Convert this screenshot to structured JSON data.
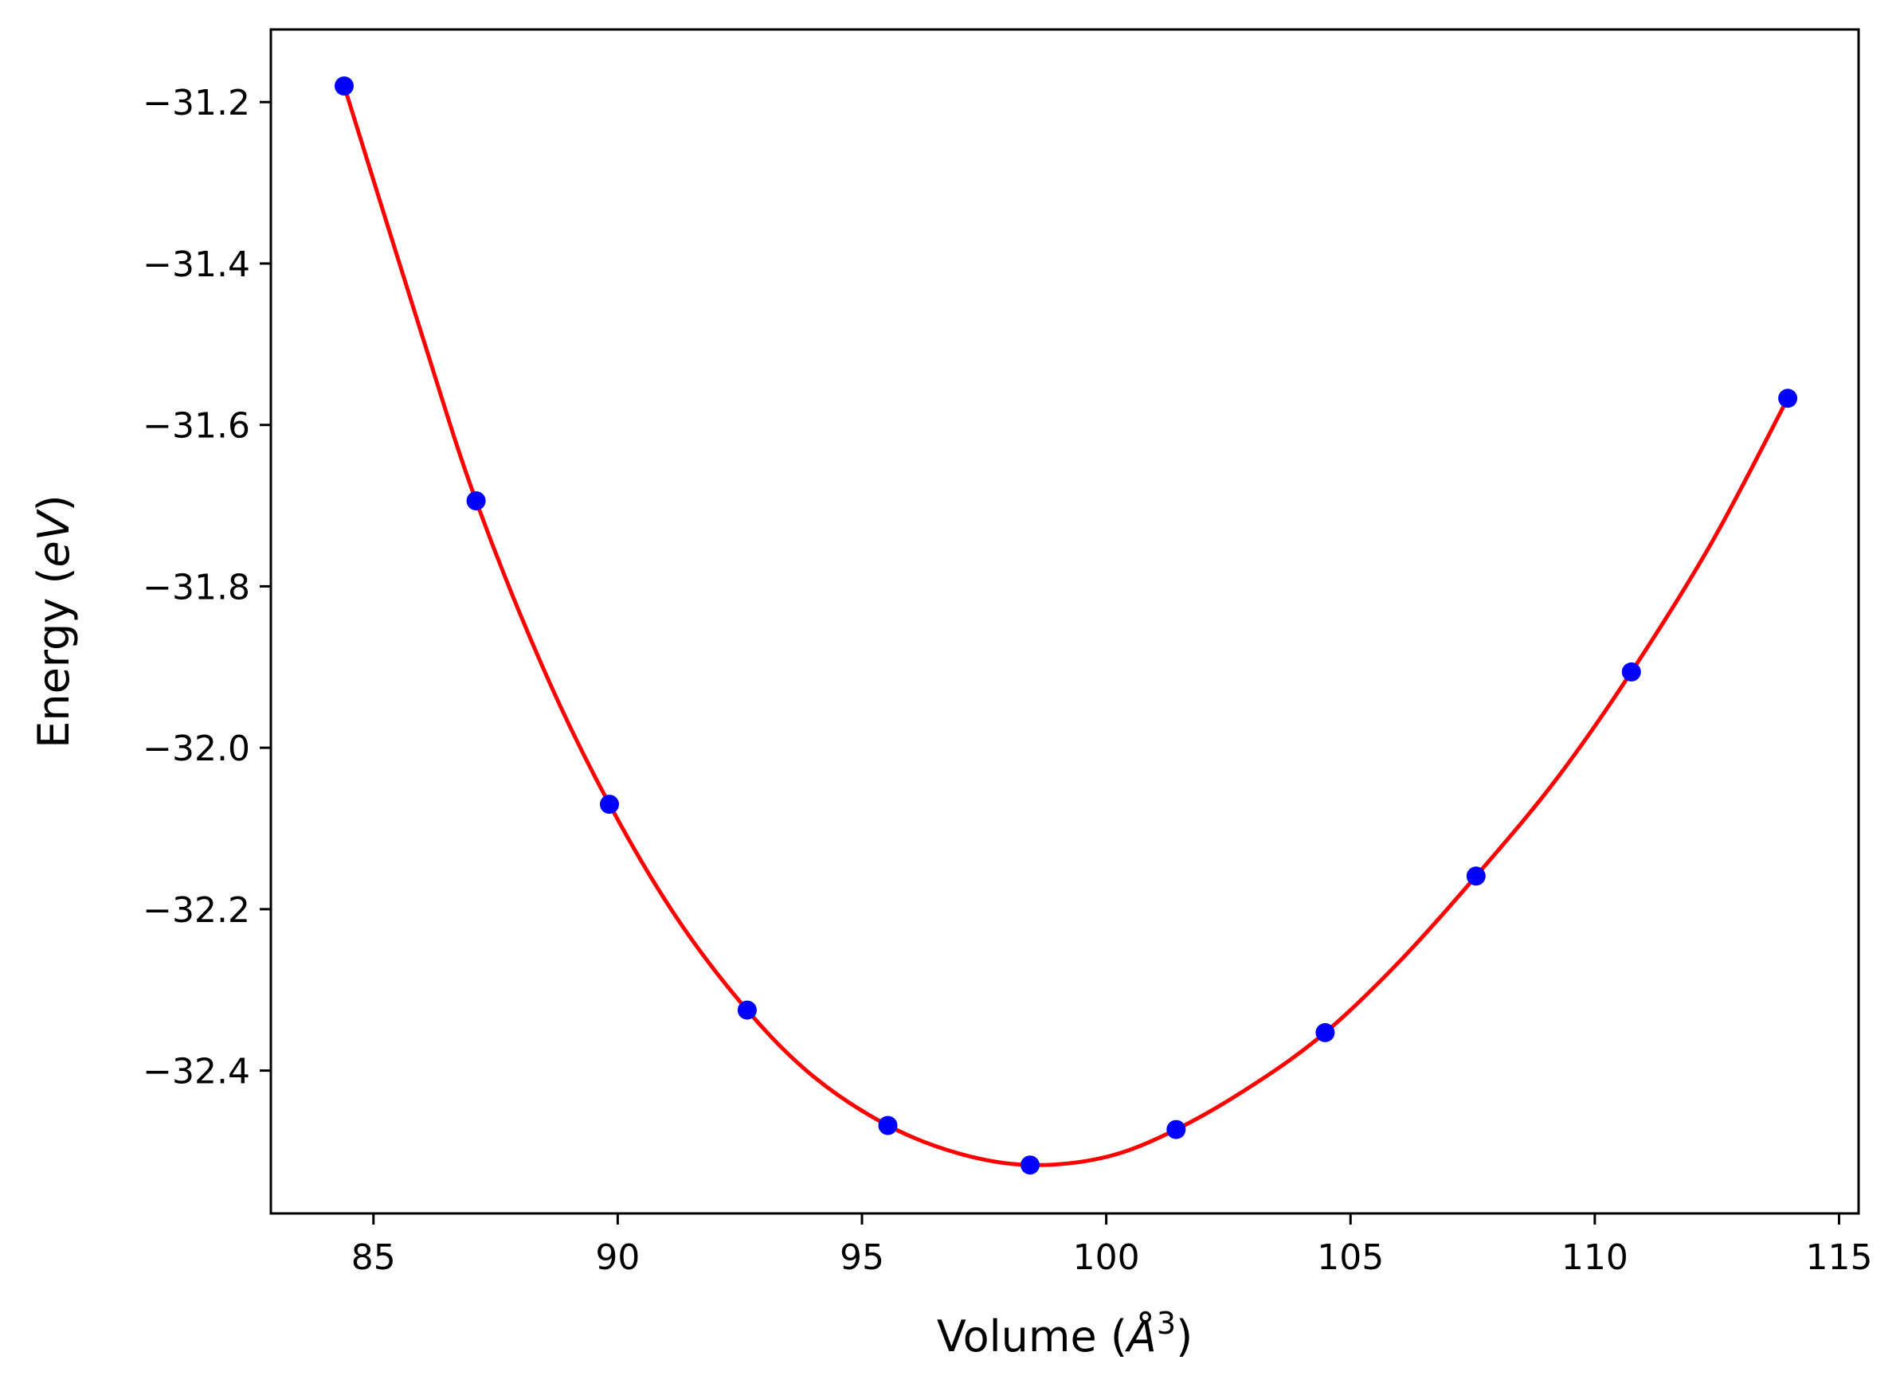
{
  "chart_data": {
    "type": "line",
    "title": "",
    "xlabel_parts": {
      "main": "Volume (",
      "unit": "Å",
      "exp": "3",
      "close": ")"
    },
    "ylabel_parts": {
      "main": "Energy (",
      "unit": "eV",
      "close": ")"
    },
    "xlim": [
      82.9,
      115.4
    ],
    "ylim": [
      -32.577,
      -31.11
    ],
    "x_ticks": [
      85,
      90,
      95,
      100,
      105,
      110,
      115
    ],
    "x_tick_labels": [
      "85",
      "90",
      "95",
      "100",
      "105",
      "110",
      "115"
    ],
    "y_ticks": [
      -31.2,
      -31.4,
      -31.6,
      -31.8,
      -32.0,
      -32.2,
      -32.4
    ],
    "y_tick_labels": [
      "−31.2",
      "−31.4",
      "−31.6",
      "−31.8",
      "−32.0",
      "−32.2",
      "−32.4"
    ],
    "grid": false,
    "series": [
      {
        "kind": "points",
        "color": "#0000ff",
        "x": [
          84.4,
          87.1,
          89.83,
          92.65,
          95.53,
          98.44,
          101.43,
          104.48,
          107.57,
          110.75,
          113.95
        ],
        "y": [
          -31.18,
          -31.694,
          -32.07,
          -32.325,
          -32.468,
          -32.517,
          -32.473,
          -32.353,
          -32.159,
          -31.906,
          -31.567
        ]
      },
      {
        "kind": "fit-curve",
        "color": "#ff0000",
        "x": [
          84.4,
          86.0,
          87.1,
          88.5,
          89.83,
          91.2,
          92.65,
          94.0,
          95.53,
          97.0,
          98.44,
          100.0,
          101.43,
          103.0,
          104.48,
          106.0,
          107.57,
          109.2,
          110.75,
          112.4,
          113.95
        ],
        "y": [
          -31.18,
          -31.49,
          -31.694,
          -31.905,
          -32.07,
          -32.21,
          -32.325,
          -32.407,
          -32.468,
          -32.503,
          -32.517,
          -32.507,
          -32.473,
          -32.418,
          -32.353,
          -32.265,
          -32.159,
          -32.04,
          -31.906,
          -31.745,
          -31.567
        ]
      }
    ]
  }
}
